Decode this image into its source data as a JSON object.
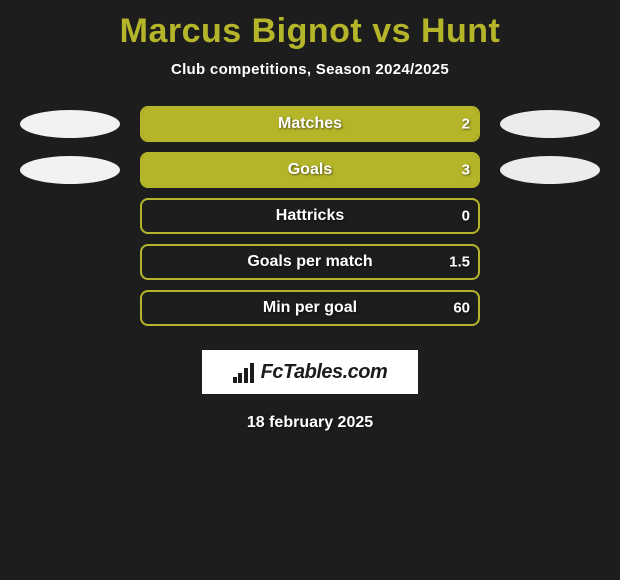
{
  "title": "Marcus Bignot vs Hunt",
  "subtitle": "Club competitions, Season 2024/2025",
  "colors": {
    "background": "#1d1d1d",
    "title_color": "#b5b52a",
    "text_color": "#ffffff",
    "bar_fill": "#b5b52a",
    "bar_border": "#b5b52a",
    "ellipse_left": "#f2f2f2",
    "ellipse_right": "#ececec",
    "logo_bg": "#ffffff",
    "logo_fg": "#1d1d1d"
  },
  "typography": {
    "title_fontsize": 34,
    "subtitle_fontsize": 15,
    "bar_label_fontsize": 16,
    "bar_value_fontsize": 15,
    "footer_fontsize": 16
  },
  "rows": [
    {
      "label": "Matches",
      "value": "2",
      "fill_pct": 100,
      "show_ellipses": true
    },
    {
      "label": "Goals",
      "value": "3",
      "fill_pct": 100,
      "show_ellipses": true
    },
    {
      "label": "Hattricks",
      "value": "0",
      "fill_pct": 0,
      "show_ellipses": false
    },
    {
      "label": "Goals per match",
      "value": "1.5",
      "fill_pct": 0,
      "show_ellipses": false
    },
    {
      "label": "Min per goal",
      "value": "60",
      "fill_pct": 0,
      "show_ellipses": false
    }
  ],
  "logo_text": "FcTables.com",
  "footer_date": "18 february 2025"
}
